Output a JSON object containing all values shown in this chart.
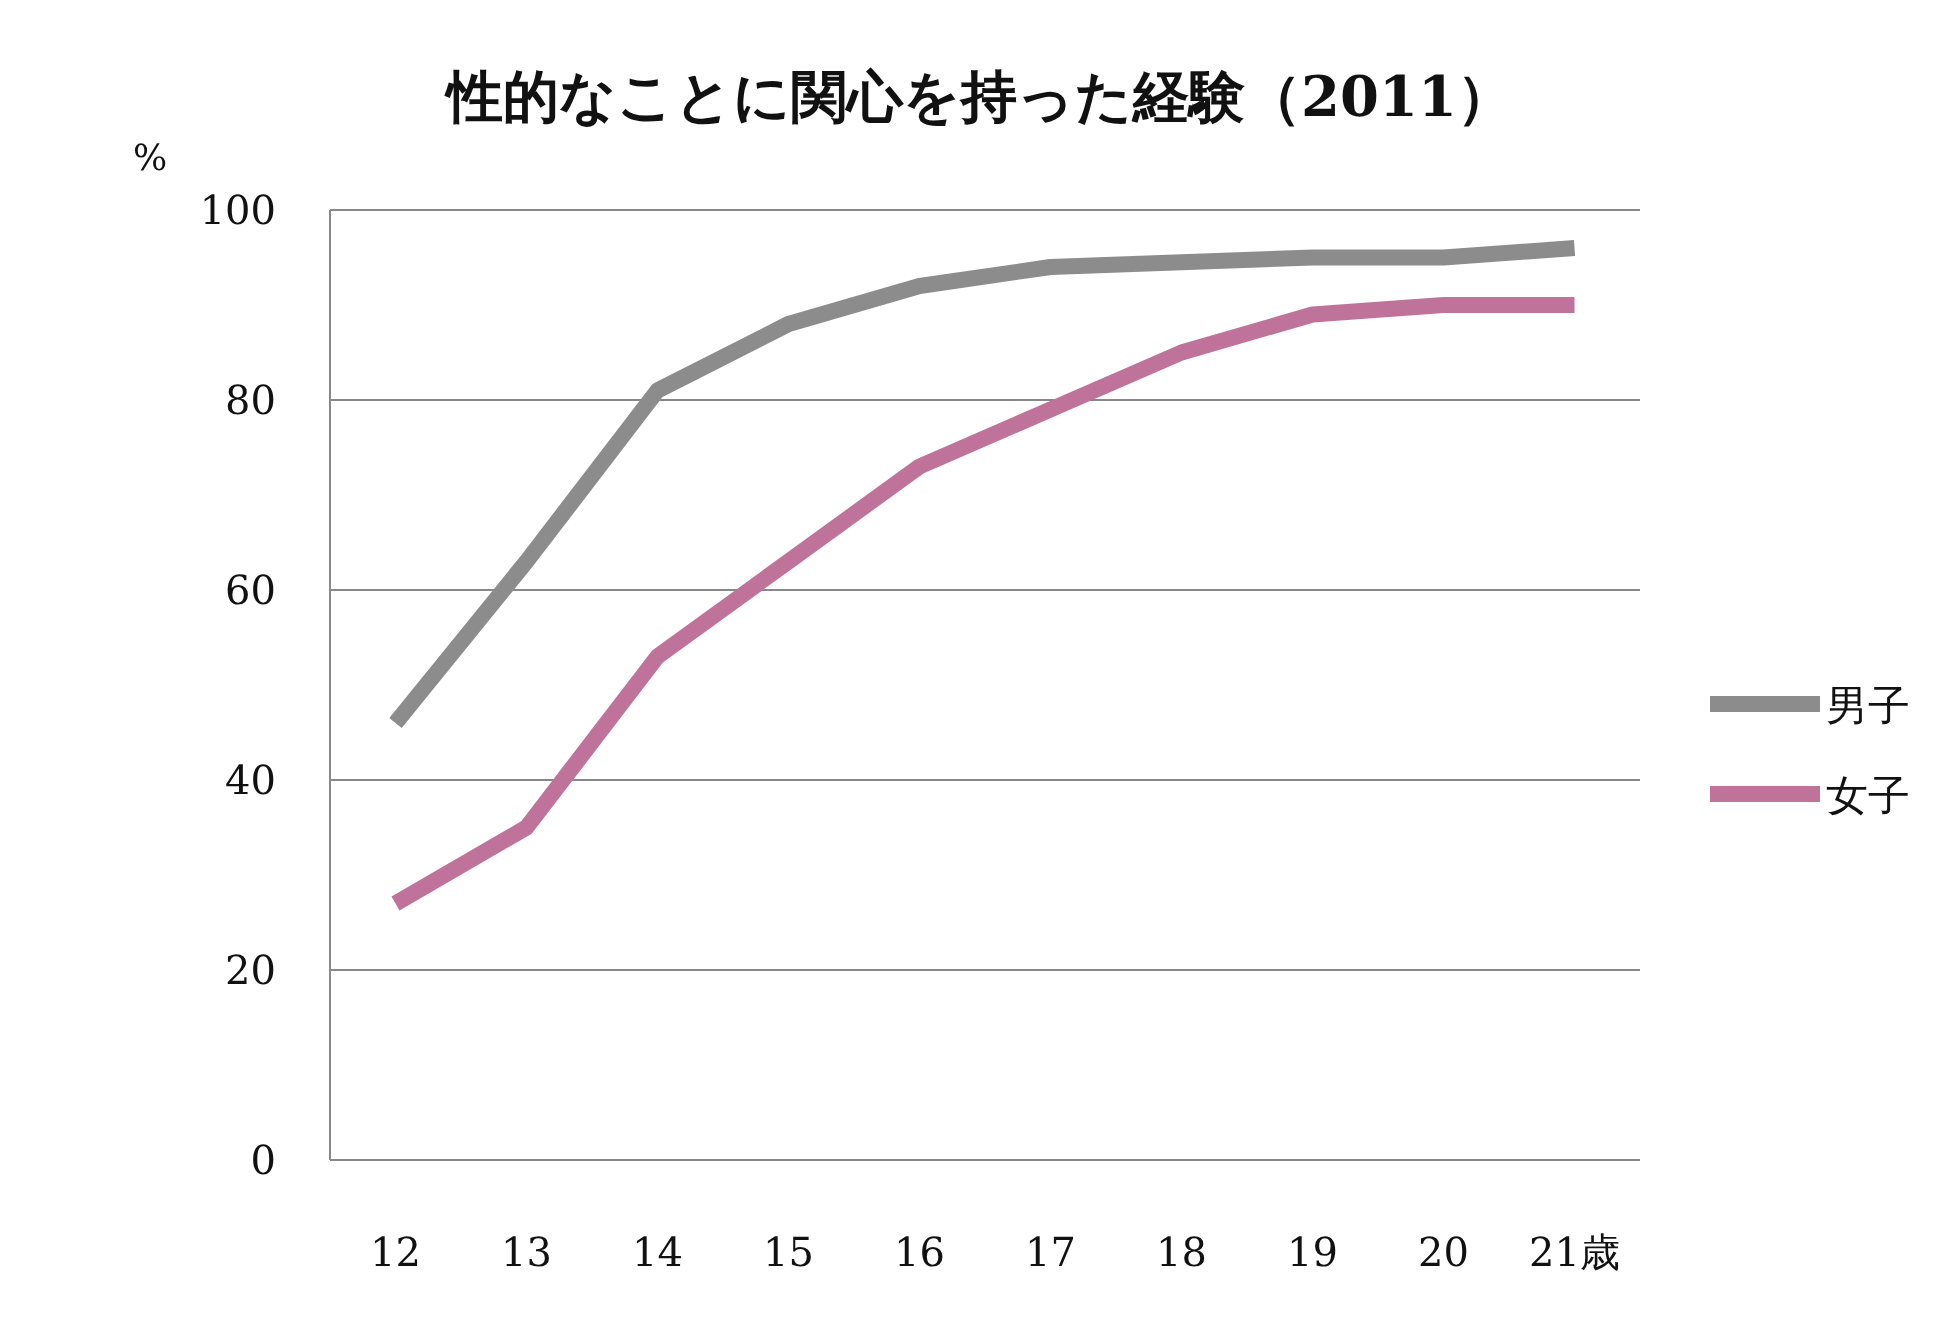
{
  "chart_data": {
    "type": "line",
    "title": "性的なことに関心を持った経験（2011）",
    "ylabel": "%",
    "categories": [
      "12",
      "13",
      "14",
      "15",
      "16",
      "17",
      "18",
      "19",
      "20",
      "21歳"
    ],
    "series": [
      {
        "name": "男子",
        "color": "#8c8c8c",
        "values": [
          46,
          63,
          81,
          88,
          92,
          94,
          94.5,
          95,
          95,
          96
        ]
      },
      {
        "name": "女子",
        "color": "#c0739a",
        "values": [
          27,
          35,
          53,
          63,
          73,
          79,
          85,
          89,
          90,
          90
        ]
      }
    ],
    "ylim": [
      0,
      100
    ],
    "yticks": [
      0,
      20,
      40,
      60,
      80,
      100
    ],
    "grid": "y",
    "legend": "right",
    "marker": "none",
    "line_style": "solid"
  }
}
